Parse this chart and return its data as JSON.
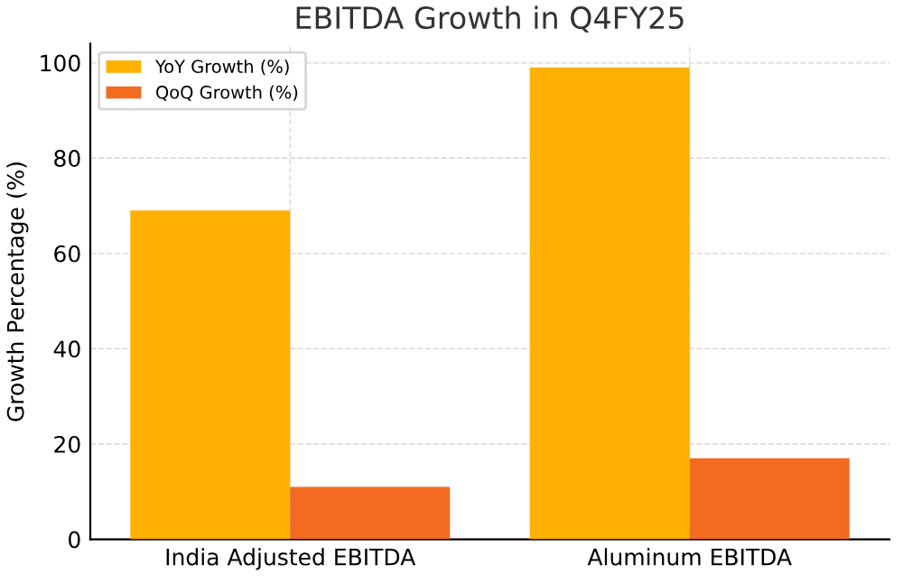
{
  "chart_data": {
    "type": "bar",
    "title": "EBITDA Growth in Q4FY25",
    "ylabel": "Growth Percentage (%)",
    "categories": [
      "India Adjusted EBITDA",
      "Aluminum EBITDA"
    ],
    "series": [
      {
        "name": "YoY Growth (%)",
        "color": "#ffb000",
        "values": [
          69,
          99
        ]
      },
      {
        "name": "QoQ Growth (%)",
        "color": "#f26b21",
        "values": [
          11,
          17
        ]
      }
    ],
    "ylim": [
      0,
      104
    ],
    "yticks": [
      0,
      20,
      40,
      60,
      80,
      100
    ],
    "grid": true,
    "legend": "top left"
  }
}
